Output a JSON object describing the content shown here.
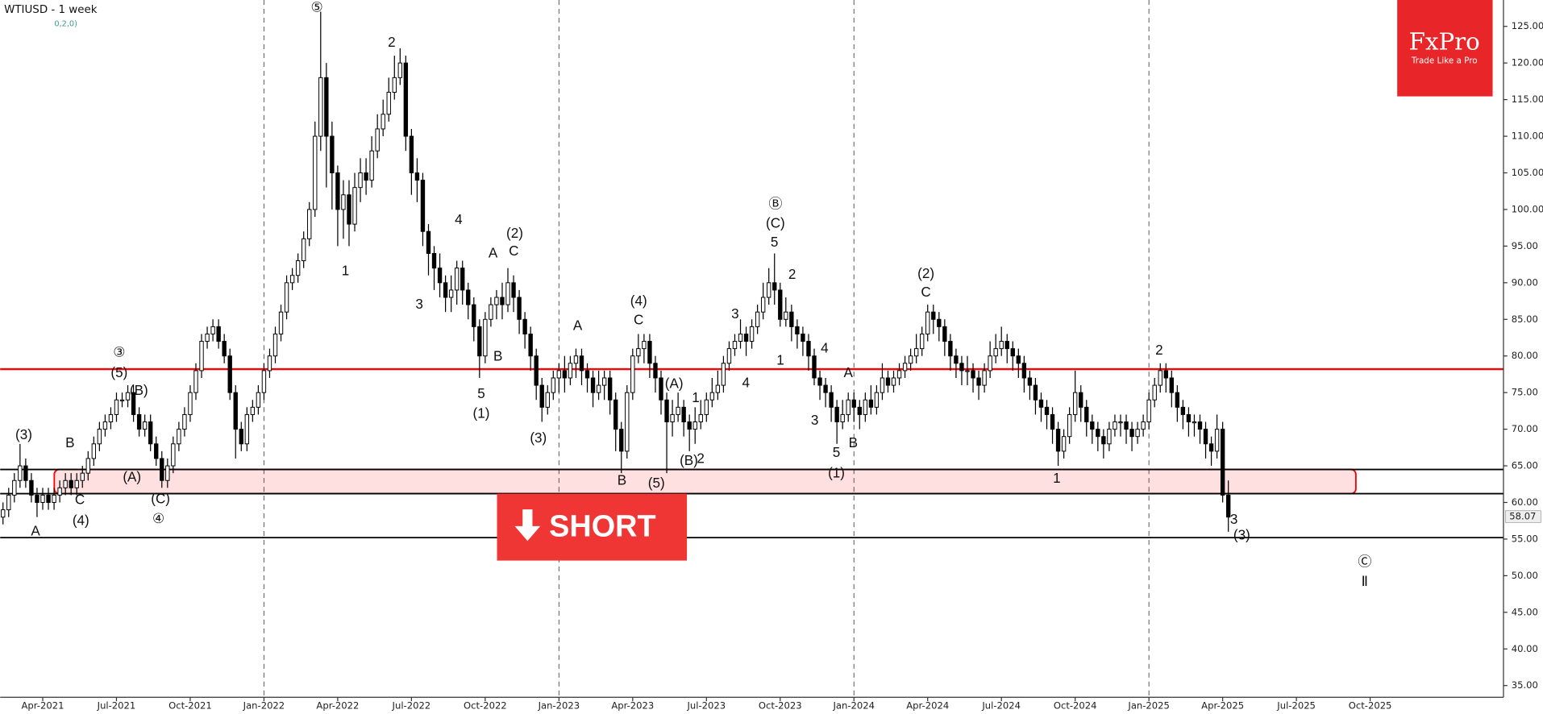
{
  "chart_data": {
    "type": "candlestick",
    "title": "WTIUSD - 1 week",
    "subtitle": "0,2,0)",
    "logo": {
      "name": "FxPro",
      "tagline": "Trade Like a Pro"
    },
    "signal": "SHORT",
    "last_price": 58.07,
    "ylim": [
      33.4,
      128.6
    ],
    "yticks": [
      {
        "value": 35,
        "label": "35.00"
      },
      {
        "value": 40,
        "label": "40.00"
      },
      {
        "value": 45,
        "label": "45.00"
      },
      {
        "value": 50,
        "label": "50.00"
      },
      {
        "value": 55,
        "label": "55.00"
      },
      {
        "value": 60,
        "label": "60.00"
      },
      {
        "value": 65,
        "label": "65.00"
      },
      {
        "value": 70,
        "label": "70.00"
      },
      {
        "value": 75,
        "label": "75.00"
      },
      {
        "value": 80,
        "label": "80.00"
      },
      {
        "value": 85,
        "label": "85.00"
      },
      {
        "value": 90,
        "label": "90.00"
      },
      {
        "value": 95,
        "label": "95.00"
      },
      {
        "value": 100,
        "label": "100.00"
      },
      {
        "value": 105,
        "label": "105.00"
      },
      {
        "value": 110,
        "label": "110.00"
      },
      {
        "value": 115,
        "label": "115.00"
      },
      {
        "value": 120,
        "label": "120.00"
      },
      {
        "value": 125,
        "label": "125.00"
      }
    ],
    "up_color": "#ffffff",
    "down_color": "#000000",
    "categories": [
      null,
      null,
      null,
      null,
      null,
      null,
      null,
      "Apr-2021",
      null,
      null,
      null,
      null,
      null,
      null,
      null,
      null,
      null,
      null,
      null,
      null,
      "Jul-2021",
      null,
      null,
      null,
      null,
      null,
      null,
      null,
      null,
      null,
      null,
      null,
      null,
      "Oct-2021",
      null,
      null,
      null,
      null,
      null,
      null,
      null,
      null,
      null,
      null,
      null,
      null,
      "Jan-2022",
      null,
      null,
      null,
      null,
      null,
      null,
      null,
      null,
      null,
      null,
      null,
      null,
      "Apr-2022",
      null,
      null,
      null,
      null,
      null,
      null,
      null,
      null,
      null,
      null,
      null,
      null,
      "Jul-2022",
      null,
      null,
      null,
      null,
      null,
      null,
      null,
      null,
      null,
      null,
      null,
      null,
      "Oct-2022",
      null,
      null,
      null,
      null,
      null,
      null,
      null,
      null,
      null,
      null,
      null,
      null,
      "Jan-2023",
      null,
      null,
      null,
      null,
      null,
      null,
      null,
      null,
      null,
      null,
      null,
      null,
      "Apr-2023",
      null,
      null,
      null,
      null,
      null,
      null,
      null,
      null,
      null,
      null,
      null,
      null,
      "Jul-2023",
      null,
      null,
      null,
      null,
      null,
      null,
      null,
      null,
      null,
      null,
      null,
      null,
      "Oct-2023",
      null,
      null,
      null,
      null,
      null,
      null,
      null,
      null,
      null,
      null,
      null,
      null,
      "Jan-2024",
      null,
      null,
      null,
      null,
      null,
      null,
      null,
      null,
      null,
      null,
      null,
      null,
      "Apr-2024",
      null,
      null,
      null,
      null,
      null,
      null,
      null,
      null,
      null,
      null,
      null,
      null,
      "Jul-2024",
      null,
      null,
      null,
      null,
      null,
      null,
      null,
      null,
      null,
      null,
      null,
      null,
      "Oct-2024",
      null,
      null,
      null,
      null,
      null,
      null,
      null,
      null,
      null,
      null,
      null,
      null,
      "Jan-2025",
      null,
      null,
      null,
      null,
      null,
      null,
      null,
      null,
      null,
      null,
      null,
      null,
      "Apr-2025",
      null,
      null,
      null,
      null,
      null,
      null,
      null,
      null,
      null,
      null,
      null,
      null,
      "Jul-2025",
      null,
      null,
      null,
      null,
      null,
      null,
      null,
      null,
      null,
      null,
      null,
      null,
      "Oct-2025",
      null,
      null,
      null,
      null,
      null,
      null,
      null,
      null,
      null,
      null,
      null,
      null,
      null,
      null,
      null,
      null,
      null,
      null,
      null,
      null,
      null,
      null,
      null
    ],
    "open": [
      58,
      59,
      61,
      63,
      65,
      63,
      61,
      60,
      61,
      60,
      61,
      62,
      63,
      62,
      63,
      64,
      66,
      68,
      70,
      71,
      72,
      74,
      74,
      75,
      72,
      70,
      71,
      68,
      66,
      63,
      65,
      68,
      70,
      72,
      75,
      78,
      82,
      83,
      84,
      82,
      80,
      75,
      70,
      68,
      72,
      73,
      75,
      78,
      80,
      83,
      86,
      90,
      91,
      93,
      96,
      100,
      110,
      118,
      110,
      105,
      100,
      102,
      98,
      103,
      105,
      104,
      108,
      111,
      113,
      116,
      118,
      120,
      110,
      105,
      104,
      97,
      94,
      92,
      90,
      88,
      89,
      92,
      89,
      87,
      84,
      80,
      85,
      87,
      88,
      87,
      90,
      88,
      85,
      83,
      80,
      76,
      73,
      75,
      77,
      78,
      77,
      79,
      80,
      78,
      77,
      75,
      76,
      77,
      74,
      70,
      67,
      75,
      80,
      81,
      82,
      79,
      77,
      74,
      71,
      72,
      73,
      71,
      70,
      71,
      72,
      74,
      75,
      76,
      79,
      81,
      82,
      83,
      82,
      84,
      86,
      88,
      90,
      89,
      85,
      86,
      84,
      83,
      82,
      80,
      77,
      76,
      75,
      73,
      71,
      72,
      74,
      73,
      72,
      74,
      73,
      75,
      77,
      76,
      77,
      78,
      79,
      80,
      81,
      83,
      86,
      85,
      84,
      82,
      80,
      79,
      78,
      78,
      77,
      76,
      78,
      80,
      81,
      82,
      81,
      80,
      79,
      77,
      76,
      74,
      73,
      72,
      70,
      67,
      69,
      72,
      75,
      73,
      71,
      70,
      69,
      68,
      70,
      71,
      71,
      70,
      69,
      70,
      71,
      74,
      76,
      78,
      77,
      75,
      73,
      72,
      71,
      71,
      70,
      68,
      67,
      70,
      61,
      null,
      null,
      null,
      null,
      null,
      null,
      null,
      null,
      null,
      null,
      null,
      null,
      null,
      null,
      null,
      null,
      null,
      null,
      null,
      null,
      null,
      null,
      null,
      null,
      null,
      null,
      null,
      null,
      null,
      null,
      null,
      null,
      null,
      null,
      null,
      null,
      null,
      null,
      null,
      null,
      null,
      null,
      null,
      null,
      null,
      null,
      null,
      null
    ],
    "high": [
      60,
      62,
      64,
      68,
      66,
      64,
      62,
      62,
      62,
      62,
      63,
      64,
      64,
      64,
      65,
      67,
      69,
      71,
      72,
      73,
      75,
      75,
      76,
      76,
      73,
      72,
      72,
      69,
      67,
      66,
      69,
      71,
      73,
      76,
      79,
      83,
      84,
      85,
      85,
      83,
      81,
      76,
      71,
      73,
      74,
      76,
      79,
      81,
      84,
      87,
      91,
      92,
      94,
      97,
      101,
      112,
      127,
      120,
      112,
      106,
      104,
      104,
      105,
      107,
      107,
      110,
      113,
      115,
      118,
      121,
      122,
      121,
      111,
      107,
      105,
      98,
      95,
      94,
      91,
      91,
      93,
      93,
      90,
      88,
      85,
      86,
      88,
      89,
      90,
      92,
      91,
      89,
      86,
      84,
      81,
      77,
      76,
      78,
      79,
      80,
      80,
      81,
      81,
      79,
      78,
      78,
      78,
      78,
      75,
      71,
      76,
      81,
      83,
      83,
      83,
      80,
      78,
      75,
      74,
      75,
      74,
      72,
      73,
      74,
      75,
      77,
      78,
      80,
      82,
      83,
      85,
      84,
      85,
      87,
      90,
      92,
      94,
      90,
      88,
      87,
      85,
      84,
      83,
      81,
      78,
      77,
      76,
      74,
      74,
      75,
      75,
      74,
      75,
      76,
      76,
      79,
      78,
      78,
      79,
      80,
      81,
      83,
      84,
      87,
      87,
      86,
      85,
      83,
      81,
      80,
      80,
      79,
      78,
      79,
      82,
      83,
      84,
      83,
      82,
      81,
      80,
      78,
      77,
      75,
      74,
      73,
      71,
      70,
      73,
      78,
      76,
      74,
      72,
      71,
      70,
      71,
      72,
      72,
      72,
      71,
      71,
      72,
      75,
      77,
      79,
      79,
      78,
      76,
      74,
      73,
      72,
      72,
      71,
      69,
      72,
      71,
      63,
      null,
      null,
      null,
      null,
      null,
      null,
      null,
      null,
      null,
      null,
      null,
      null,
      null,
      null,
      null,
      null,
      null,
      null,
      null,
      null,
      null,
      null,
      null,
      null,
      null,
      null,
      null,
      null,
      null,
      null,
      null,
      null,
      null,
      null,
      null,
      null,
      null,
      null,
      null,
      null,
      null,
      null,
      null,
      null,
      null,
      null,
      null,
      null
    ],
    "low": [
      57,
      58,
      60,
      62,
      62,
      60,
      58,
      59,
      59,
      59,
      60,
      61,
      61,
      61,
      62,
      63,
      65,
      67,
      69,
      70,
      71,
      73,
      73,
      71,
      69,
      69,
      67,
      65,
      62,
      62,
      64,
      67,
      69,
      71,
      74,
      77,
      81,
      82,
      81,
      79,
      74,
      66,
      67,
      67,
      71,
      72,
      74,
      77,
      79,
      82,
      85,
      89,
      90,
      92,
      95,
      99,
      108,
      103,
      100,
      95,
      96,
      95,
      97,
      101,
      102,
      103,
      107,
      110,
      112,
      115,
      117,
      108,
      102,
      101,
      95,
      91,
      89,
      88,
      86,
      86,
      87,
      87,
      85,
      82,
      77,
      79,
      84,
      85,
      85,
      86,
      86,
      83,
      81,
      78,
      74,
      71,
      72,
      74,
      75,
      75,
      76,
      77,
      76,
      75,
      73,
      74,
      74,
      72,
      67,
      64,
      66,
      74,
      79,
      79,
      77,
      75,
      72,
      64,
      69,
      71,
      69,
      67,
      68,
      70,
      71,
      73,
      74,
      75,
      78,
      80,
      81,
      80,
      81,
      83,
      85,
      87,
      87,
      84,
      84,
      82,
      81,
      80,
      78,
      76,
      74,
      73,
      71,
      68,
      70,
      71,
      71,
      70,
      71,
      72,
      72,
      74,
      75,
      75,
      76,
      77,
      78,
      79,
      80,
      82,
      83,
      82,
      80,
      78,
      77,
      76,
      76,
      75,
      74,
      75,
      77,
      79,
      80,
      79,
      78,
      77,
      75,
      74,
      72,
      71,
      70,
      68,
      65,
      66,
      68,
      71,
      71,
      69,
      68,
      67,
      66,
      67,
      69,
      69,
      68,
      67,
      68,
      69,
      70,
      73,
      75,
      75,
      73,
      71,
      70,
      69,
      69,
      68,
      66,
      65,
      66,
      60,
      56,
      null,
      null,
      null,
      null,
      null,
      null,
      null,
      null,
      null,
      null,
      null,
      null,
      null,
      null,
      null,
      null,
      null,
      null,
      null,
      null,
      null,
      null,
      null,
      null,
      null,
      null,
      null,
      null,
      null,
      null,
      null,
      null,
      null,
      null,
      null,
      null,
      null,
      null,
      null,
      null,
      null,
      null,
      null,
      null,
      null,
      null,
      null,
      null
    ],
    "close": [
      59,
      61,
      63,
      65,
      63,
      61,
      60,
      61,
      60,
      61,
      62,
      63,
      62,
      63,
      64,
      66,
      68,
      70,
      71,
      72,
      74,
      74,
      75,
      72,
      70,
      71,
      68,
      66,
      63,
      65,
      68,
      70,
      72,
      75,
      78,
      82,
      83,
      84,
      82,
      80,
      75,
      70,
      68,
      72,
      73,
      75,
      78,
      80,
      83,
      86,
      90,
      91,
      93,
      96,
      100,
      110,
      118,
      110,
      105,
      100,
      102,
      98,
      103,
      105,
      104,
      108,
      111,
      113,
      116,
      118,
      120,
      110,
      105,
      104,
      97,
      94,
      92,
      90,
      88,
      89,
      92,
      89,
      87,
      84,
      80,
      85,
      87,
      88,
      87,
      90,
      88,
      85,
      83,
      80,
      76,
      73,
      75,
      77,
      78,
      77,
      79,
      80,
      78,
      77,
      75,
      76,
      77,
      74,
      70,
      67,
      75,
      80,
      81,
      82,
      79,
      77,
      74,
      71,
      72,
      73,
      71,
      70,
      71,
      72,
      74,
      75,
      76,
      79,
      81,
      82,
      83,
      82,
      84,
      86,
      88,
      90,
      89,
      85,
      86,
      84,
      83,
      82,
      80,
      77,
      76,
      75,
      73,
      71,
      72,
      74,
      73,
      72,
      74,
      73,
      75,
      77,
      76,
      77,
      78,
      79,
      80,
      81,
      83,
      86,
      85,
      84,
      82,
      80,
      79,
      78,
      78,
      77,
      76,
      78,
      80,
      81,
      82,
      81,
      80,
      79,
      77,
      76,
      74,
      73,
      72,
      70,
      67,
      69,
      72,
      75,
      73,
      71,
      70,
      69,
      68,
      70,
      71,
      71,
      70,
      69,
      70,
      71,
      74,
      76,
      78,
      77,
      75,
      73,
      72,
      71,
      71,
      70,
      68,
      67,
      70,
      61,
      58,
      null,
      null,
      null,
      null,
      null,
      null,
      null,
      null,
      null,
      null,
      null,
      null,
      null,
      null,
      null,
      null,
      null,
      null,
      null,
      null,
      null,
      null,
      null,
      null,
      null,
      null,
      null,
      null,
      null,
      null,
      null,
      null,
      null,
      null,
      null,
      null,
      null,
      null,
      null,
      null,
      null,
      null,
      null,
      null,
      null,
      null,
      null,
      null
    ],
    "levels": [
      {
        "value": 78.2,
        "color": "#ff0000"
      },
      {
        "value": 64.5,
        "color": "#000000"
      },
      {
        "value": 61.2,
        "color": "#000000"
      },
      {
        "value": 55.2,
        "color": "#000000"
      }
    ],
    "zone": {
      "low": 61.2,
      "high": 64.5,
      "color": "#ff0000"
    },
    "annotations": [
      "⑤",
      "2",
      "1",
      "3",
      "4",
      "(2)",
      "C",
      "A",
      "B",
      "5",
      "(1)",
      "(3)",
      "A",
      "B",
      "(4)",
      "C",
      "(5)",
      "(A)",
      "1",
      "(B)",
      "2",
      "3",
      "4",
      "Ⓑ",
      "(C)",
      "5",
      "2",
      "1",
      "4",
      "A",
      "3",
      "5",
      "B",
      "(1)",
      "(2)",
      "C",
      "1",
      "2",
      "3",
      "(3)",
      "Ⓒ",
      "Ⅱ",
      "(3)",
      "B",
      "C",
      "(4)",
      "A",
      "③",
      "(5)",
      "(B)",
      "(A)",
      "(C)",
      "④"
    ]
  }
}
